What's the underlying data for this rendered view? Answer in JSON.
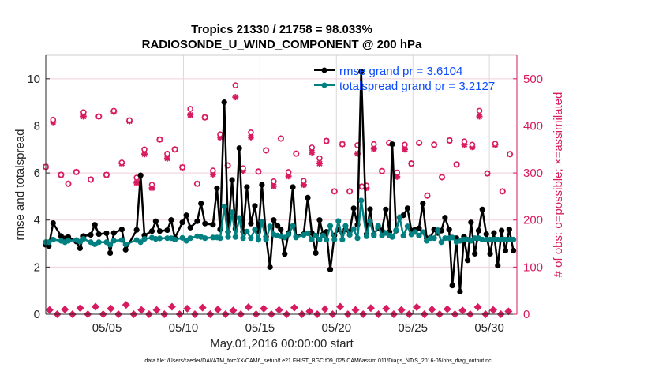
{
  "chart_data": {
    "type": "line",
    "title": [
      "Tropics 21330 / 21758 = 98.033%",
      "RADIOSONDE_U_WIND_COMPONENT @ 200 hPa"
    ],
    "xlabel": "May.01,2016 00:00:00 start",
    "ylabel": "rmse and totalspread",
    "ylabel_right": "# of obs: o=possible; ×=assimilated",
    "footer": "data file: /Users/raeder/DAI/ATM_forcXX/CAM6_setup/f.e21.FHIST_BGC.f09_025.CAM6assim.011/Diags_NTrS_2016-05/obs_diag_output.nc",
    "xlim": [
      0,
      30.8
    ],
    "ylim": [
      0,
      11
    ],
    "ylim_right": [
      0,
      550
    ],
    "xticks": [
      {
        "day": 4,
        "label": "05/05"
      },
      {
        "day": 9,
        "label": "05/10"
      },
      {
        "day": 14,
        "label": "05/15"
      },
      {
        "day": 19,
        "label": "05/20"
      },
      {
        "day": 24,
        "label": "05/25"
      },
      {
        "day": 29,
        "label": "05/30"
      }
    ],
    "yticks": [
      0,
      2,
      4,
      6,
      8,
      10
    ],
    "yticks_right": [
      0,
      100,
      200,
      300,
      400,
      500
    ],
    "grid": true,
    "legend_placement": "top-right",
    "legend": [
      "rmse grand pr = 3.6104",
      "totalspread grand pr = 3.2127"
    ],
    "colors": {
      "rmse": "#000000",
      "spread": "#008080",
      "obs": "#d81b60",
      "legend_text": "#0b4cff"
    },
    "x_days": [
      0,
      0.2,
      0.48,
      1.0,
      1.25,
      1.47,
      2.0,
      2.24,
      2.47,
      2.94,
      3.21,
      3.47,
      3.97,
      4.21,
      4.45,
      4.97,
      5.22,
      5.94,
      6.2,
      6.45,
      6.94,
      7.19,
      7.45,
      7.94,
      8.2,
      8.44,
      8.93,
      9.19,
      9.45,
      9.9,
      10.15,
      10.41,
      10.93,
      11.19,
      11.4,
      11.67,
      11.92,
      12.18,
      12.4,
      12.65,
      12.9,
      13.15,
      13.41,
      13.67,
      13.9,
      14.13,
      14.4,
      14.66,
      14.9,
      15.15,
      15.36,
      15.62,
      15.87,
      16.15,
      16.36,
      16.86,
      17.13,
      17.39,
      17.65,
      17.9,
      18.13,
      18.35,
      18.6,
      18.87,
      19.13,
      19.39,
      19.6,
      19.87,
      20.13,
      20.38,
      20.62,
      20.97,
      21.2,
      21.45,
      21.73,
      21.98,
      22.23,
      22.47,
      22.65,
      22.9,
      23.13,
      23.38,
      23.65,
      23.9,
      24.15,
      24.4,
      24.65,
      24.9,
      25.15,
      25.39,
      25.63,
      25.86,
      26.1,
      26.37,
      26.58,
      26.85,
      27.08,
      27.34,
      27.58,
      27.8,
      28.05,
      28.3,
      28.54,
      28.8,
      29.05,
      29.3,
      29.55,
      29.8,
      30.05,
      30.3,
      30.57
    ],
    "series": [
      {
        "name": "rmse",
        "values": [
          2.95,
          2.9,
          3.87,
          3.32,
          3.22,
          3.28,
          3.09,
          2.8,
          3.32,
          3.37,
          3.8,
          3.4,
          3.44,
          2.6,
          3.45,
          3.6,
          2.74,
          3.58,
          5.9,
          3.35,
          3.53,
          3.95,
          3.53,
          3.57,
          4.0,
          3.23,
          3.9,
          4.2,
          3.68,
          3.95,
          4.7,
          3.85,
          3.8,
          5.35,
          3.6,
          9.0,
          3.5,
          5.7,
          3.63,
          7.05,
          3.5,
          5.4,
          3.85,
          4.6,
          3.5,
          5.5,
          3.3,
          2.0,
          4.0,
          3.76,
          3.6,
          2.56,
          3.45,
          5.4,
          3.3,
          3.4,
          4.95,
          3.45,
          2.6,
          4.0,
          3.4,
          3.5,
          1.9,
          3.35,
          3.6,
          3.45,
          3.6,
          3.5,
          4.5,
          3.8,
          10.3,
          3.4,
          4.46,
          3.4,
          3.65,
          3.55,
          4.45,
          3.5,
          7.22,
          3.55,
          4.1,
          4.2,
          4.5,
          3.55,
          3.6,
          3.65,
          4.7,
          3.23,
          3.25,
          3.6,
          3.45,
          3.55,
          4.1,
          3.6,
          1.22,
          3.23,
          0.96,
          3.3,
          2.29,
          3.9,
          2.57,
          3.55,
          4.45,
          3.4,
          2.57,
          3.45,
          2.06,
          3.55,
          2.7,
          3.6,
          2.7
        ]
      },
      {
        "name": "totalspread",
        "values": [
          3.06,
          3.06,
          3.17,
          3.12,
          3.06,
          3.12,
          3.15,
          3.08,
          3.2,
          3.06,
          2.97,
          3.06,
          3.06,
          2.95,
          3.12,
          3.15,
          2.97,
          3.15,
          3.06,
          3.2,
          3.25,
          3.2,
          3.22,
          3.23,
          3.23,
          3.17,
          3.24,
          3.12,
          3.23,
          3.31,
          3.28,
          3.23,
          3.26,
          3.26,
          3.23,
          4.57,
          3.28,
          4.33,
          3.28,
          4.09,
          3.23,
          3.51,
          3.23,
          3.6,
          3.17,
          3.94,
          3.17,
          3.73,
          3.39,
          3.34,
          3.31,
          3.26,
          3.39,
          3.75,
          3.26,
          3.37,
          3.44,
          3.17,
          3.34,
          3.17,
          3.34,
          3.17,
          3.75,
          3.17,
          3.96,
          3.17,
          3.75,
          3.37,
          3.62,
          3.23,
          4.83,
          3.31,
          3.94,
          3.34,
          3.75,
          3.34,
          3.45,
          3.34,
          3.28,
          3.57,
          4.12,
          3.34,
          3.73,
          3.39,
          3.49,
          3.34,
          3.49,
          3.12,
          3.23,
          3.23,
          3.57,
          3.06,
          3.23,
          3.23,
          3.26,
          3.06,
          3.12,
          3.17,
          3.17,
          3.12,
          3.23,
          3.23,
          3.17,
          3.17,
          3.17,
          3.17,
          3.17,
          3.17,
          3.17,
          3.17,
          3.17
        ]
      }
    ],
    "obs": {
      "days": [
        0,
        0.48,
        1.0,
        1.47,
        2.0,
        2.47,
        2.94,
        3.47,
        3.97,
        4.45,
        4.97,
        5.47,
        5.94,
        6.45,
        6.94,
        7.45,
        7.94,
        8.44,
        8.93,
        9.45,
        9.9,
        10.4,
        10.93,
        11.4,
        11.9,
        12.4,
        12.9,
        13.41,
        13.9,
        14.4,
        14.9,
        15.37,
        15.87,
        16.37,
        16.86,
        17.4,
        17.9,
        18.35,
        18.87,
        19.39,
        19.87,
        20.38,
        20.67,
        20.97,
        21.45,
        21.98,
        22.45,
        22.97,
        23.47,
        23.9,
        24.41,
        24.94,
        25.39,
        25.9,
        26.4,
        26.86,
        27.37,
        27.88,
        28.35,
        28.87,
        29.38,
        29.86,
        30.34
      ],
      "possible": [
        313,
        413,
        296,
        277,
        302,
        429,
        286,
        420,
        296,
        432,
        322,
        412,
        290,
        350,
        275,
        371,
        341,
        350,
        312,
        436,
        277,
        418,
        305,
        382,
        316,
        486,
        310,
        386,
        303,
        348,
        282,
        373,
        302,
        341,
        283,
        354,
        331,
        368,
        261,
        361,
        261,
        359,
        271,
        273,
        361,
        304,
        364,
        301,
        360,
        320,
        364,
        252,
        360,
        291,
        369,
        318,
        367,
        360,
        432,
        299,
        362,
        261,
        340
      ],
      "assimilated": [
        313,
        408,
        296,
        277,
        302,
        420,
        286,
        420,
        296,
        430,
        320,
        410,
        279,
        340,
        268,
        371,
        331,
        350,
        312,
        423,
        277,
        418,
        297,
        376,
        316,
        461,
        305,
        376,
        303,
        348,
        272,
        373,
        293,
        341,
        275,
        344,
        320,
        368,
        261,
        361,
        261,
        341,
        271,
        268,
        351,
        304,
        364,
        292,
        350,
        320,
        364,
        252,
        360,
        291,
        369,
        318,
        360,
        355,
        420,
        299,
        360,
        261,
        340
      ]
    },
    "obs_low": {
      "days_start": 0.25,
      "step": 0.5,
      "values": [
        9,
        0,
        10,
        0,
        13,
        0,
        16,
        0,
        12,
        0,
        20,
        0,
        9,
        0,
        9,
        0,
        16,
        0,
        12,
        0,
        14,
        0,
        10,
        0,
        8,
        0,
        15,
        0,
        12,
        0,
        9,
        0,
        14,
        0,
        6,
        0,
        11,
        0,
        16,
        0,
        9,
        0,
        13,
        0,
        12,
        0,
        9,
        0,
        15,
        0,
        10,
        0,
        11,
        0,
        8,
        0,
        15,
        0,
        9,
        0,
        6
      ]
    }
  }
}
